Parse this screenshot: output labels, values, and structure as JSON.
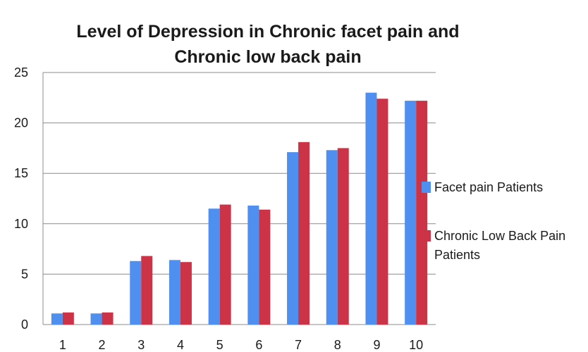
{
  "chart_data": {
    "type": "bar",
    "title_lines": [
      "Level of Depression in Chronic facet pain and",
      "Chronic low back pain"
    ],
    "categories": [
      "1",
      "2",
      "3",
      "4",
      "5",
      "6",
      "7",
      "8",
      "9",
      "10"
    ],
    "series": [
      {
        "name": "Facet pain Patients",
        "color": "#4f8ff0",
        "values": [
          1.1,
          1.1,
          6.3,
          6.4,
          11.5,
          11.8,
          17.1,
          17.3,
          23.0,
          22.2
        ]
      },
      {
        "name_lines": [
          "Chronic Low Back Pain",
          "Patients"
        ],
        "color": "#cc3347",
        "values": [
          1.2,
          1.2,
          6.8,
          6.2,
          11.9,
          11.4,
          18.1,
          17.5,
          22.4,
          22.2
        ]
      }
    ],
    "ylim": [
      0,
      25
    ],
    "yticks": [
      "0",
      "5",
      "10",
      "15",
      "20",
      "25"
    ],
    "grid": true,
    "legend_position": "right"
  }
}
